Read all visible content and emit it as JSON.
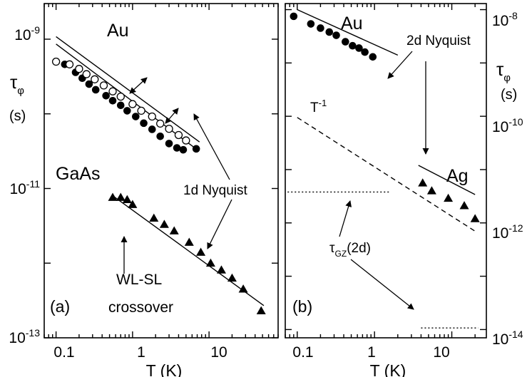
{
  "chart_data": [
    {
      "panel": "a",
      "type": "scatter",
      "log_x": true,
      "log_y": true,
      "xlim": [
        0.07,
        80
      ],
      "ylim": [
        1e-13,
        3e-09
      ],
      "x_ticks": [
        0.1,
        1,
        10
      ],
      "x_tick_labels": [
        "0.1",
        "1",
        "10"
      ],
      "y_tick_labels": [
        {
          "value": 1e-09,
          "base": "10",
          "exp": "-9"
        },
        {
          "value": 1e-11,
          "base": "10",
          "exp": "-11"
        },
        {
          "value": 1e-13,
          "base": "10",
          "exp": "-13"
        }
      ],
      "xlabel": "T (K)",
      "ylabel_main": "τ",
      "ylabel_sub": "φ",
      "ylabel_unit": "(s)",
      "panel_label": "(a)",
      "series": [
        {
          "name": "Au",
          "marker": "circle-filled",
          "x": [
            0.13,
            0.18,
            0.22,
            0.27,
            0.33,
            0.45,
            0.55,
            0.7,
            0.85,
            1.1,
            1.4,
            1.8,
            2.3,
            3.0,
            3.8,
            4.6,
            6.8
          ],
          "y": [
            4.6e-10,
            3.6e-10,
            3e-10,
            2.5e-10,
            2.1e-10,
            1.75e-10,
            1.5e-10,
            1.3e-10,
            1.1e-10,
            9.2e-11,
            7.5e-11,
            6.2e-11,
            5e-11,
            4e-11,
            3.5e-11,
            3.3e-11,
            3.4e-11
          ]
        },
        {
          "name": "Au",
          "marker": "circle-open",
          "x": [
            0.1,
            0.15,
            0.2,
            0.25,
            0.32,
            0.42,
            0.55,
            0.7,
            1.0,
            1.3,
            1.8,
            2.3,
            3.0,
            4.0,
            5.0
          ],
          "y": [
            5e-10,
            4.6e-10,
            4e-10,
            3.4e-10,
            2.9e-10,
            2.4e-10,
            2e-10,
            1.7e-10,
            1.35e-10,
            1.1e-10,
            9.2e-11,
            7.4e-11,
            6.3e-11,
            5.2e-11,
            4.4e-11
          ]
        },
        {
          "name": "GaAs",
          "marker": "triangle-filled",
          "x": [
            0.55,
            0.7,
            0.85,
            1.0,
            1.9,
            2.6,
            3.5,
            5.5,
            7.8,
            10.5,
            14.5,
            20,
            28,
            48
          ],
          "y": [
            7.6e-12,
            7.6e-12,
            7.1e-12,
            6.1e-12,
            4e-12,
            3.3e-12,
            2.7e-12,
            1.9e-12,
            1.4e-12,
            1e-12,
            8.1e-13,
            6.3e-13,
            4.5e-13,
            2.3e-13
          ]
        }
      ],
      "lines": [
        {
          "kind": "solid",
          "x": [
            0.1,
            7.5
          ],
          "y": [
            1.08e-09,
            4.2e-11
          ]
        },
        {
          "kind": "solid",
          "x": [
            0.1,
            6.5
          ],
          "y": [
            8.6e-10,
            3.5e-11
          ]
        },
        {
          "kind": "solid",
          "x": [
            0.58,
            52
          ],
          "y": [
            7.7e-12,
            2.7e-13
          ]
        }
      ],
      "annotations": {
        "au": "Au",
        "gaas": "GaAs",
        "nyquist": "1d Nyquist",
        "crossover_line1": "WL-SL",
        "crossover_line2": "crossover"
      }
    },
    {
      "panel": "b",
      "type": "scatter",
      "log_x": true,
      "log_y": true,
      "xlim": [
        0.07,
        28
      ],
      "ylim": [
        7e-15,
        1.3e-08
      ],
      "x_ticks": [
        0.1,
        1,
        10
      ],
      "x_tick_labels": [
        "0.1",
        "1",
        "10"
      ],
      "y_tick_labels": [
        {
          "value": 1e-08,
          "base": "10",
          "exp": "-8"
        },
        {
          "value": 1e-10,
          "base": "10",
          "exp": "-10"
        },
        {
          "value": 1e-12,
          "base": "10",
          "exp": "-12"
        },
        {
          "value": 1e-14,
          "base": "10",
          "exp": "-14"
        }
      ],
      "xlabel": "T (K)",
      "ylabel_main": "τ",
      "ylabel_sub": "φ",
      "ylabel_unit": "(s)",
      "panel_label": "(b)",
      "series": [
        {
          "name": "Au",
          "marker": "circle-filled",
          "x": [
            0.09,
            0.15,
            0.2,
            0.26,
            0.32,
            0.42,
            0.52,
            0.63,
            0.75,
            0.95
          ],
          "y": [
            7.5e-09,
            5.4e-09,
            4.5e-09,
            3.8e-09,
            3.3e-09,
            2.5e-09,
            2.1e-09,
            1.9e-09,
            1.6e-09,
            1.3e-09
          ]
        },
        {
          "name": "Ag",
          "marker": "triangle-filled",
          "x": [
            4.2,
            5.5,
            9.0,
            14.5,
            20
          ],
          "y": [
            5.6e-12,
            4e-12,
            2.9e-12,
            2.1e-12,
            1.2e-12
          ]
        }
      ],
      "lines": [
        {
          "kind": "solid",
          "x": [
            0.1,
            2.0
          ],
          "y": [
            1e-08,
            1.4e-09
          ]
        },
        {
          "kind": "solid",
          "x": [
            3.7,
            20
          ],
          "y": [
            1.2e-11,
            3.4e-12
          ]
        },
        {
          "kind": "dashed",
          "x": [
            0.1,
            20
          ],
          "y": [
            9.5e-11,
            7e-13
          ]
        },
        {
          "kind": "dotted",
          "x": [
            0.075,
            1.6
          ],
          "y": [
            3.8e-12,
            3.8e-12
          ]
        },
        {
          "kind": "dotted",
          "x": [
            4.0,
            22
          ],
          "y": [
            1.07e-14,
            1.07e-14
          ]
        }
      ],
      "annotations": {
        "au": "Au",
        "ag": "Ag",
        "nyquist": "2d Nyquist",
        "tinv_base": "T",
        "tinv_exp": "-1",
        "tgz_main": "τ",
        "tgz_sub": "GZ",
        "tgz_tail": "(2d)"
      }
    }
  ]
}
